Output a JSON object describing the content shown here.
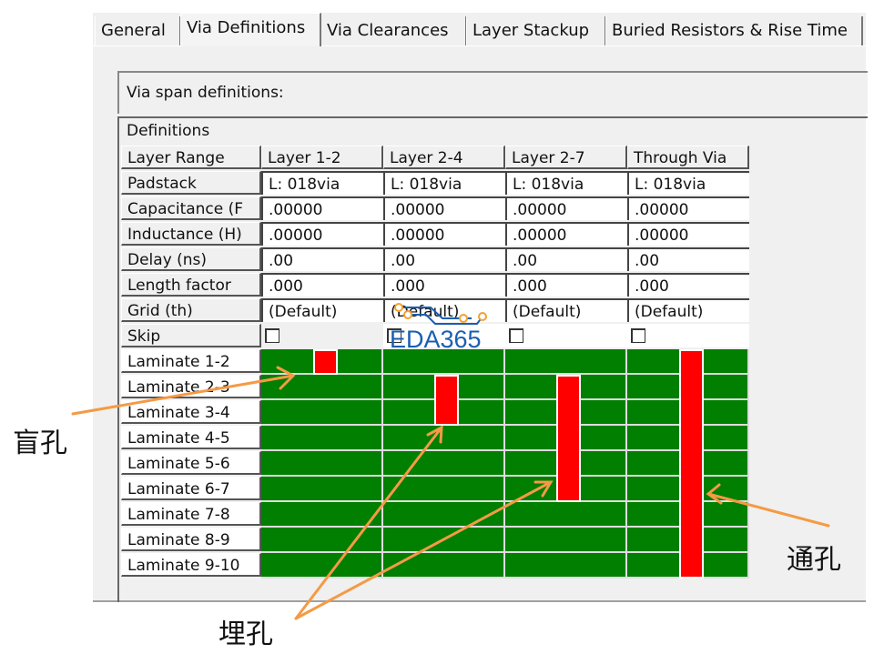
{
  "tabs": [
    "General",
    "Via Definitions",
    "Via Clearances",
    "Layer Stackup",
    "Buried Resistors & Rise Time"
  ],
  "active_tab": 1,
  "section_label": "Via span definitions:",
  "grid_title": "Definitions",
  "row_labels": [
    "Layer Range",
    "Padstack",
    "Capacitance (F",
    "Inductance (H)",
    "Delay (ns)",
    "Length factor",
    "Grid (th)",
    "Skip"
  ],
  "columns": [
    {
      "layer_range": "Layer 1-2",
      "padstack": "L: 018via",
      "capacitance": ".00000",
      "inductance": ".00000",
      "delay": ".00",
      "length_factor": ".000",
      "grid": "(Default)",
      "skip": false,
      "span": [
        1,
        1
      ]
    },
    {
      "layer_range": "Layer 2-4",
      "padstack": "L: 018via",
      "capacitance": ".00000",
      "inductance": ".00000",
      "delay": ".00",
      "length_factor": ".000",
      "grid": "(Default)",
      "skip": false,
      "span": [
        2,
        3
      ]
    },
    {
      "layer_range": "Layer 2-7",
      "padstack": "L: 018via",
      "capacitance": ".00000",
      "inductance": ".00000",
      "delay": ".00",
      "length_factor": ".000",
      "grid": "(Default)",
      "skip": false,
      "span": [
        2,
        6
      ]
    },
    {
      "layer_range": "Through Via",
      "padstack": "L: 018via",
      "capacitance": ".00000",
      "inductance": ".00000",
      "delay": ".00",
      "length_factor": ".000",
      "grid": "(Default)",
      "skip": false,
      "span": [
        1,
        9
      ]
    }
  ],
  "laminates": [
    "Laminate  1-2",
    "Laminate  2-3",
    "Laminate  3-4",
    "Laminate  4-5",
    "Laminate  5-6",
    "Laminate  6-7",
    "Laminate  7-8",
    "Laminate  8-9",
    "Laminate  9-10"
  ],
  "colors": {
    "laminate": "#007f00",
    "via": "#ff0000",
    "arrow": "#f59a45",
    "logo": "#1a5eb0"
  },
  "watermark": "EDA365",
  "annotations": {
    "blind": "盲孔",
    "buried": "埋孔",
    "through": "通孔"
  }
}
